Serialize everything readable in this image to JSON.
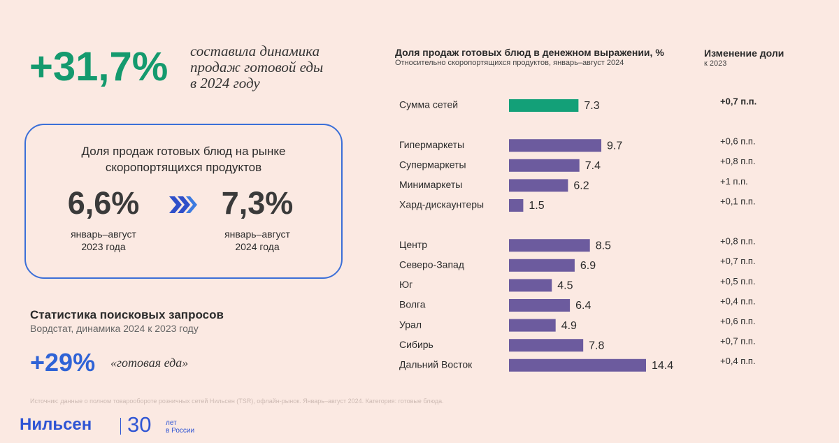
{
  "headline": {
    "value": "+31,7%",
    "text": [
      "составила динамика",
      "продаж готовой еды",
      "в 2024 году"
    ]
  },
  "share_box": {
    "title": [
      "Доля продаж готовых блюд на рынке",
      "скоропортящихся продуктов"
    ],
    "before": {
      "value": "6,6%",
      "period": [
        "январь–август",
        "2023 года"
      ]
    },
    "after": {
      "value": "7,3%",
      "period": [
        "январь–август",
        "2024 года"
      ]
    }
  },
  "search": {
    "title": "Статистика поисковых запросов",
    "subtitle": "Вордстат, динамика 2024 к 2023 году",
    "value": "+29%",
    "query": "«готовая еда»"
  },
  "chart_data": {
    "type": "bar",
    "title": "Доля продаж готовых блюд в денежном выражении, %",
    "subtitle": "Относительно скоропортящихся продуктов, январь–август 2024",
    "change_title": "Изменение доли",
    "change_subtitle": "к 2023",
    "groups": [
      {
        "color": "#13a078",
        "categories": [
          "Сумма сетей"
        ],
        "values": [
          7.3
        ],
        "changes": [
          "+0,7 п.п."
        ]
      },
      {
        "color": "#6c5b9e",
        "categories": [
          "Гипермаркеты",
          "Супермаркеты",
          "Минимаркеты",
          "Хард-дискаунтеры"
        ],
        "values": [
          9.7,
          7.4,
          6.2,
          1.5
        ],
        "changes": [
          "+0,6 п.п.",
          "+0,8 п.п.",
          "+1 п.п.",
          "+0,1 п.п."
        ]
      },
      {
        "color": "#6c5b9e",
        "categories": [
          "Центр",
          "Северо-Запад",
          "Юг",
          "Волга",
          "Урал",
          "Сибирь",
          "Дальний Восток"
        ],
        "values": [
          8.5,
          6.9,
          4.5,
          6.4,
          4.9,
          7.8,
          14.4
        ],
        "changes": [
          "+0,8 п.п.",
          "+0,7 п.п.",
          "+0,5 п.п.",
          "+0,4 п.п.",
          "+0,6 п.п.",
          "+0,7 п.п.",
          "+0,4 п.п."
        ]
      }
    ]
  },
  "source": "Источник: данные о полном товарообороте розничных сетей Нильсен (TSR), офлайн-рынок. Январь–август 2024. Категория: готовые блюда.",
  "logo": {
    "name": "Нильсен",
    "years": "30",
    "caption": [
      "лет",
      "в России"
    ]
  }
}
